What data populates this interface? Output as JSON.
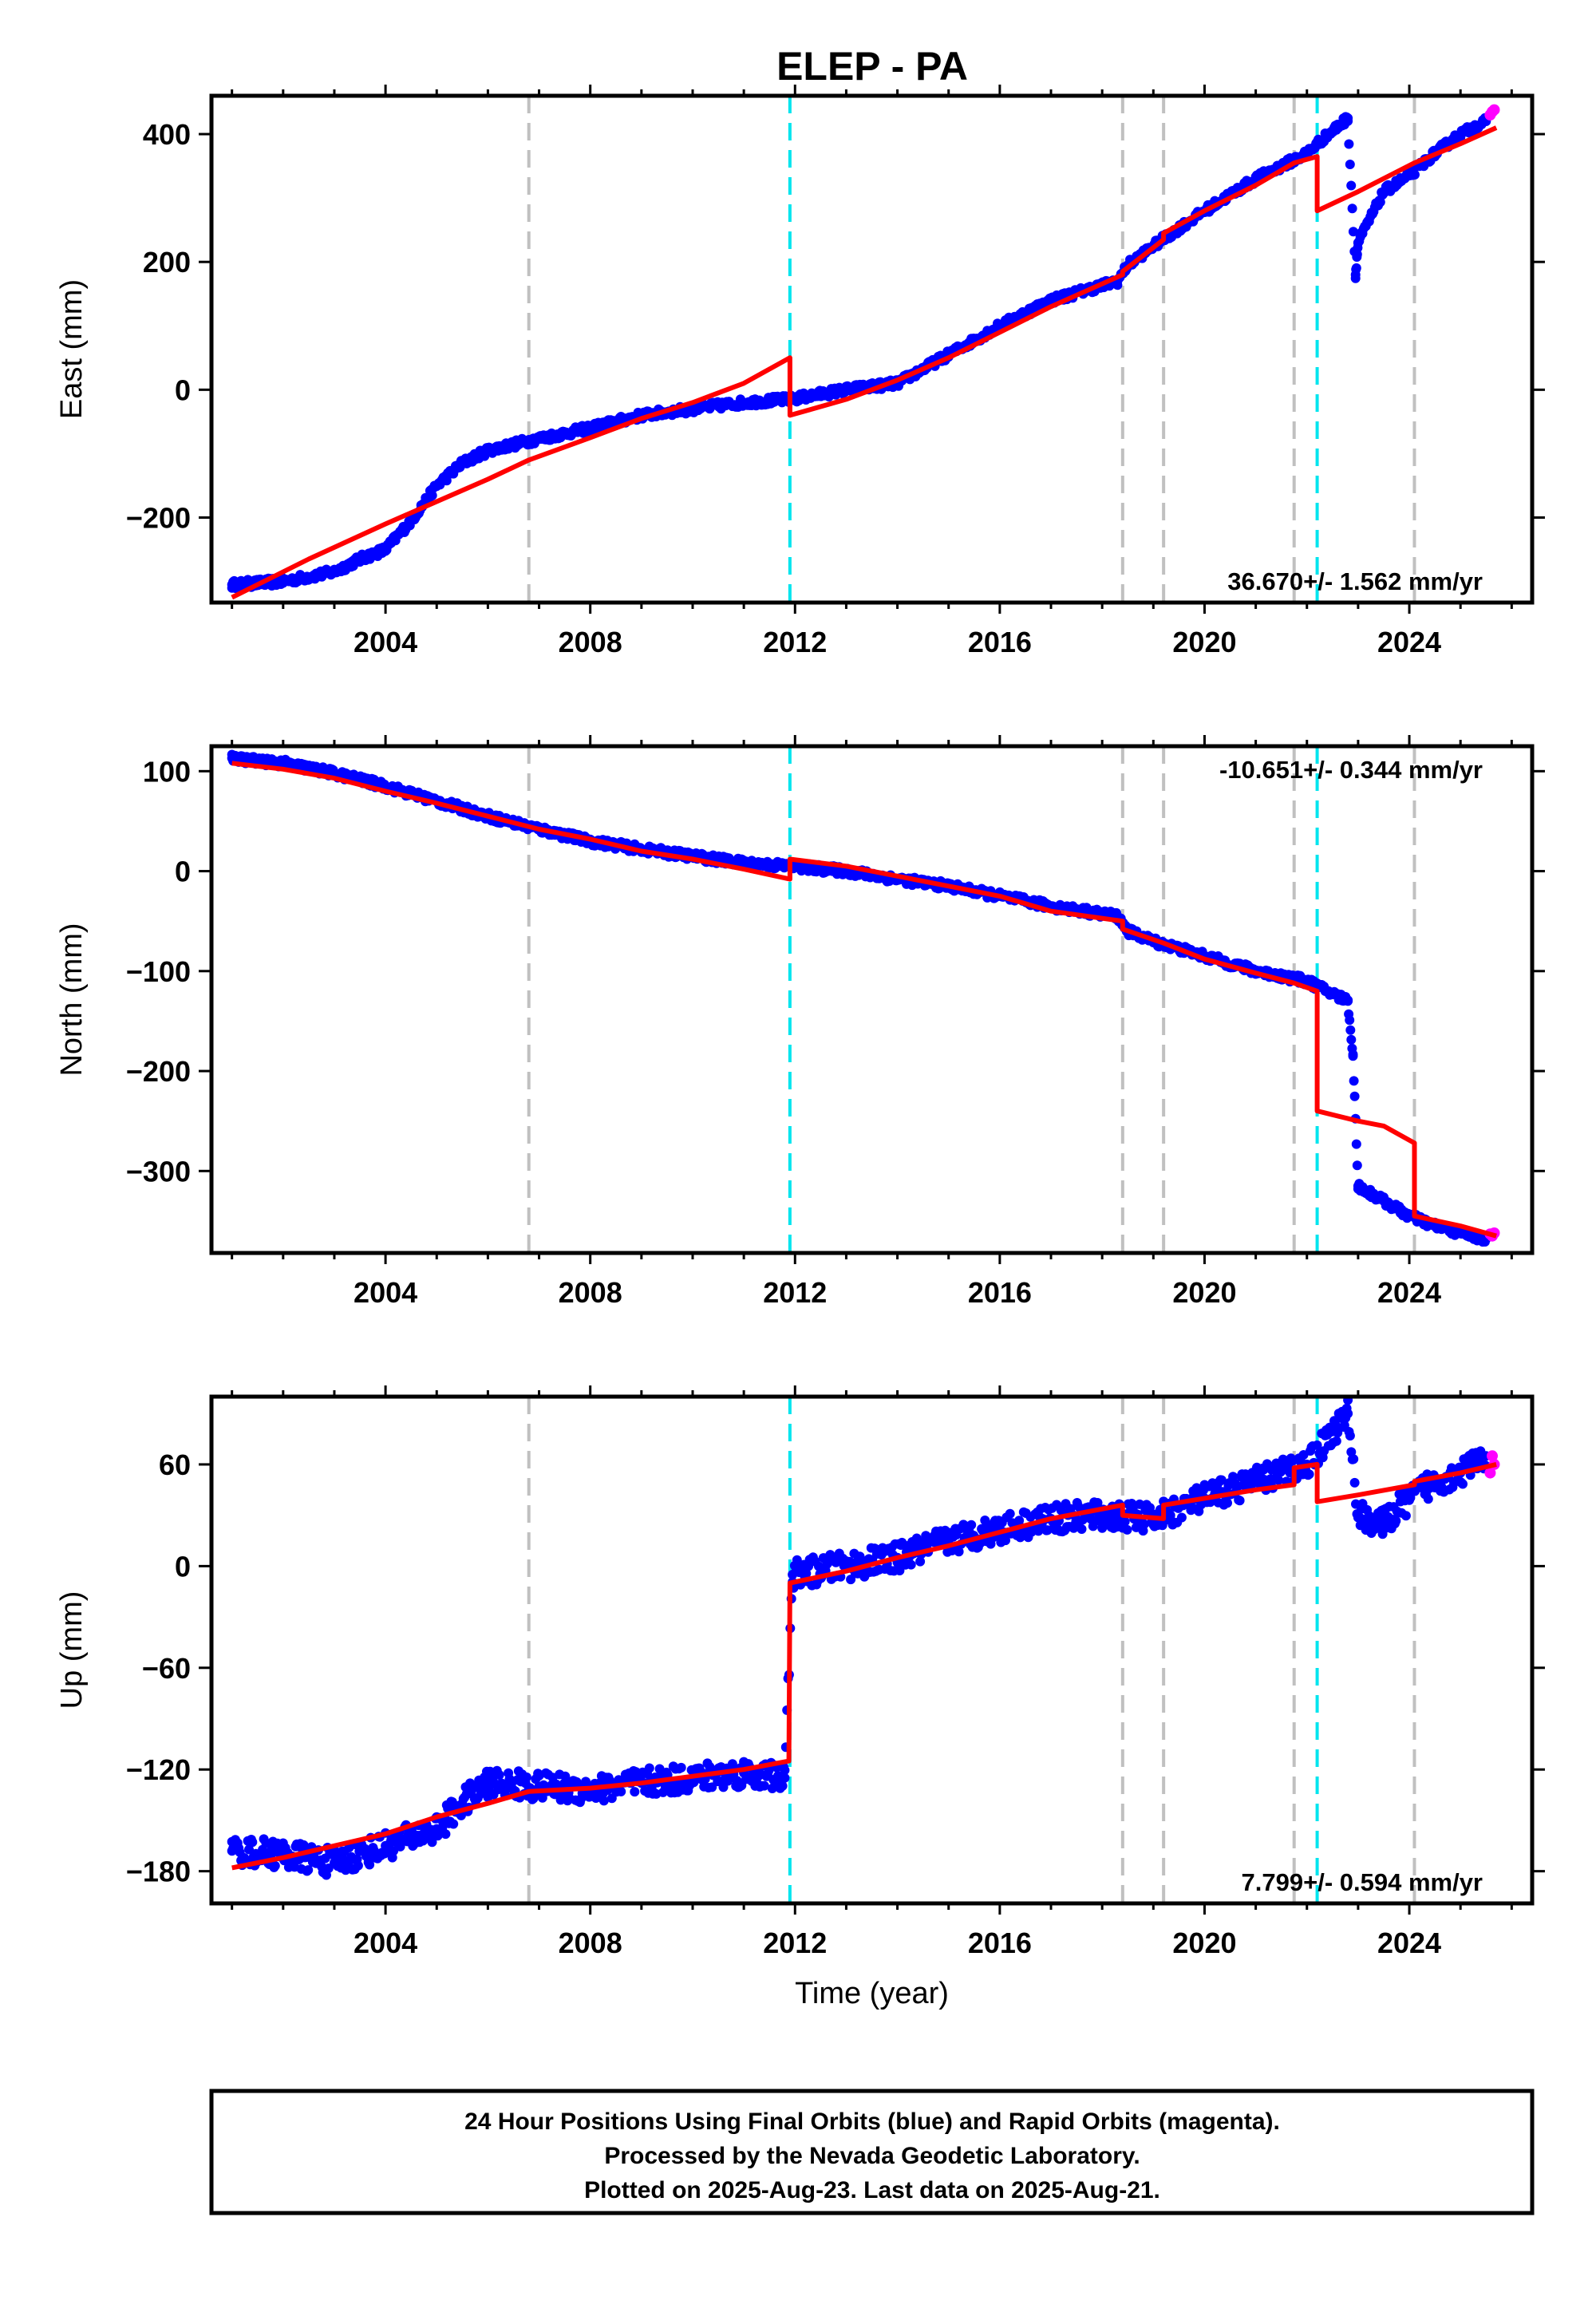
{
  "title": "ELEP - PA",
  "caption": {
    "lines": [
      "24 Hour Positions Using Final Orbits (blue) and Rapid Orbits (magenta).",
      "Processed by the Nevada Geodetic Laboratory.",
      "Plotted on 2025-Aug-23. Last data on 2025-Aug-21."
    ]
  },
  "colors": {
    "final_orbits": "#0000ff",
    "rapid_orbits": "#ff00ff",
    "model": "#ff0000",
    "equipment_change": "#c0c0c0",
    "earthquake": "#00e5ee"
  },
  "chart_data": [
    {
      "type": "scatter",
      "ylabel": "East (mm)",
      "xlabel": "",
      "xlim": [
        2000.6,
        2026.4
      ],
      "ylim": [
        -333,
        460
      ],
      "xticks": [
        2004,
        2008,
        2012,
        2016,
        2020,
        2024
      ],
      "xtick_labels": [
        "2004",
        "2008",
        "2012",
        "2016",
        "2020",
        "2024"
      ],
      "yticks": [
        -200,
        0,
        200,
        400
      ],
      "ytick_labels": [
        "−200",
        "0",
        "200",
        "400"
      ],
      "rate_label": "36.670+/- 1.562 mm/yr",
      "rate_position": "bottom-right",
      "vlines_equipment": [
        2006.8,
        2018.4,
        2019.2,
        2021.75,
        2024.1
      ],
      "vlines_earthquake": [
        2011.9,
        2022.2
      ],
      "final_orbits": {
        "x": [
          2001.0,
          2002.0,
          2003.0,
          2003.5,
          2004.0,
          2004.5,
          2005.0,
          2005.5,
          2006.0,
          2006.8,
          2008.0,
          2009.0,
          2010.0,
          2011.0,
          2011.9,
          2013.0,
          2014.0,
          2015.0,
          2016.0,
          2017.0,
          2018.3,
          2018.5,
          2019.0,
          2020.0,
          2021.0,
          2022.0,
          2022.2,
          2022.8,
          2022.95,
          2023.0,
          2023.5,
          2024.0,
          2024.5,
          2025.0,
          2025.5
        ],
        "y": [
          -305,
          -300,
          -285,
          -265,
          -250,
          -205,
          -150,
          -115,
          -95,
          -80,
          -60,
          -40,
          -30,
          -20,
          -15,
          0,
          10,
          55,
          100,
          140,
          170,
          195,
          225,
          280,
          330,
          370,
          385,
          425,
          180,
          230,
          310,
          335,
          370,
          400,
          420
        ]
      },
      "rapid_orbits": {
        "x": [
          2025.58,
          2025.62,
          2025.66
        ],
        "y": [
          430,
          435,
          438
        ]
      },
      "model": {
        "x": [
          2001.0,
          2002.5,
          2004.0,
          2005.0,
          2006.0,
          2006.8,
          2008.0,
          2009.0,
          2010.0,
          2011.0,
          2011.9,
          2011.9,
          2013.0,
          2014.0,
          2015.0,
          2016.0,
          2017.0,
          2018.4,
          2018.4,
          2019.2,
          2019.2,
          2020.0,
          2021.0,
          2021.75,
          2022.2,
          2022.2,
          2023.0,
          2024.1,
          2025.0,
          2025.7
        ],
        "y": [
          -325,
          -265,
          -210,
          -175,
          -140,
          -110,
          -75,
          -45,
          -20,
          10,
          50,
          -40,
          -15,
          15,
          50,
          90,
          130,
          180,
          185,
          235,
          245,
          280,
          320,
          355,
          365,
          280,
          310,
          355,
          385,
          410
        ]
      }
    },
    {
      "type": "scatter",
      "ylabel": "North (mm)",
      "xlabel": "",
      "xlim": [
        2000.6,
        2026.4
      ],
      "ylim": [
        -382,
        125
      ],
      "xticks": [
        2004,
        2008,
        2012,
        2016,
        2020,
        2024
      ],
      "xtick_labels": [
        "2004",
        "2008",
        "2012",
        "2016",
        "2020",
        "2024"
      ],
      "yticks": [
        -300,
        -200,
        -100,
        0,
        100
      ],
      "ytick_labels": [
        "−300",
        "−200",
        "−100",
        "0",
        "100"
      ],
      "rate_label": "-10.651+/- 0.344 mm/yr",
      "rate_position": "top-right",
      "vlines_equipment": [
        2006.8,
        2018.4,
        2019.2,
        2021.75,
        2024.1
      ],
      "vlines_earthquake": [
        2011.9,
        2022.2
      ],
      "final_orbits": {
        "x": [
          2001.0,
          2002.0,
          2003.0,
          2004.0,
          2005.0,
          2006.0,
          2007.0,
          2008.0,
          2009.0,
          2010.0,
          2011.0,
          2011.9,
          2013.0,
          2014.0,
          2015.0,
          2016.0,
          2017.0,
          2018.3,
          2018.5,
          2019.0,
          2020.0,
          2021.0,
          2022.0,
          2022.8,
          2022.9,
          2023.0,
          2023.5,
          2024.0,
          2024.5,
          2025.0,
          2025.5
        ],
        "y": [
          113,
          108,
          98,
          85,
          70,
          55,
          42,
          30,
          22,
          15,
          8,
          5,
          0,
          -8,
          -15,
          -25,
          -35,
          -45,
          -60,
          -70,
          -85,
          -100,
          -110,
          -130,
          -185,
          -315,
          -330,
          -345,
          -355,
          -362,
          -368
        ]
      },
      "rapid_orbits": {
        "x": [
          2025.58,
          2025.62,
          2025.66
        ],
        "y": [
          -363,
          -365,
          -362
        ]
      },
      "model": {
        "x": [
          2001.0,
          2002.0,
          2003.0,
          2004.0,
          2005.0,
          2006.0,
          2007.0,
          2008.0,
          2009.0,
          2010.0,
          2011.0,
          2011.9,
          2011.9,
          2013.0,
          2014.0,
          2015.0,
          2016.0,
          2017.0,
          2018.4,
          2018.4,
          2019.2,
          2020.0,
          2021.0,
          2021.75,
          2022.2,
          2022.2,
          2023.0,
          2023.5,
          2024.1,
          2024.1,
          2025.0,
          2025.7
        ],
        "y": [
          108,
          102,
          93,
          80,
          68,
          55,
          42,
          32,
          20,
          12,
          2,
          -8,
          12,
          5,
          -5,
          -15,
          -25,
          -40,
          -50,
          -58,
          -72,
          -88,
          -102,
          -112,
          -120,
          -240,
          -250,
          -255,
          -272,
          -345,
          -355,
          -365
        ]
      }
    },
    {
      "type": "scatter",
      "ylabel": "Up (mm)",
      "xlabel": "Time (year)",
      "xlim": [
        2000.6,
        2026.4
      ],
      "ylim": [
        -199,
        100
      ],
      "xticks": [
        2004,
        2008,
        2012,
        2016,
        2020,
        2024
      ],
      "xtick_labels": [
        "2004",
        "2008",
        "2012",
        "2016",
        "2020",
        "2024"
      ],
      "yticks": [
        -180,
        -120,
        -60,
        0,
        60
      ],
      "ytick_labels": [
        "−180",
        "−120",
        "−60",
        "0",
        "60"
      ],
      "rate_label": "7.799+/- 0.594 mm/yr",
      "rate_position": "bottom-right",
      "vlines_equipment": [
        2006.8,
        2018.4,
        2019.2,
        2021.75,
        2024.1
      ],
      "vlines_earthquake": [
        2011.9,
        2022.2
      ],
      "final_orbits": {
        "x": [
          2001.0,
          2002.0,
          2003.0,
          2004.0,
          2005.0,
          2005.5,
          2006.0,
          2007.0,
          2008.0,
          2009.0,
          2010.0,
          2011.0,
          2011.8,
          2011.95,
          2013.0,
          2014.0,
          2015.0,
          2016.0,
          2017.0,
          2018.0,
          2019.0,
          2020.0,
          2021.0,
          2022.0,
          2022.8,
          2023.0,
          2023.5,
          2024.0,
          2024.5,
          2025.0,
          2025.5
        ],
        "y": [
          -168,
          -170,
          -175,
          -165,
          -155,
          -140,
          -128,
          -130,
          -132,
          -128,
          -125,
          -122,
          -125,
          -5,
          0,
          5,
          15,
          22,
          28,
          30,
          28,
          40,
          50,
          60,
          90,
          30,
          25,
          40,
          50,
          55,
          65
        ]
      },
      "rapid_orbits": {
        "x": [
          2025.58,
          2025.62,
          2025.66
        ],
        "y": [
          55,
          65,
          60
        ]
      },
      "model": {
        "x": [
          2001.0,
          2002.0,
          2003.0,
          2004.0,
          2005.0,
          2006.0,
          2006.8,
          2008.0,
          2009.0,
          2010.0,
          2011.0,
          2011.88,
          2011.9,
          2013.0,
          2014.0,
          2015.0,
          2016.0,
          2017.0,
          2018.4,
          2018.4,
          2019.2,
          2019.2,
          2020.0,
          2021.0,
          2021.75,
          2021.75,
          2022.2,
          2022.2,
          2023.0,
          2024.1,
          2024.1,
          2025.0,
          2025.7
        ],
        "y": [
          -178,
          -172,
          -165,
          -158,
          -148,
          -140,
          -133,
          -131,
          -128,
          -124,
          -120,
          -115,
          -10,
          -3,
          5,
          12,
          20,
          28,
          36,
          30,
          28,
          36,
          40,
          45,
          48,
          58,
          60,
          38,
          42,
          48,
          50,
          55,
          60
        ]
      }
    }
  ]
}
